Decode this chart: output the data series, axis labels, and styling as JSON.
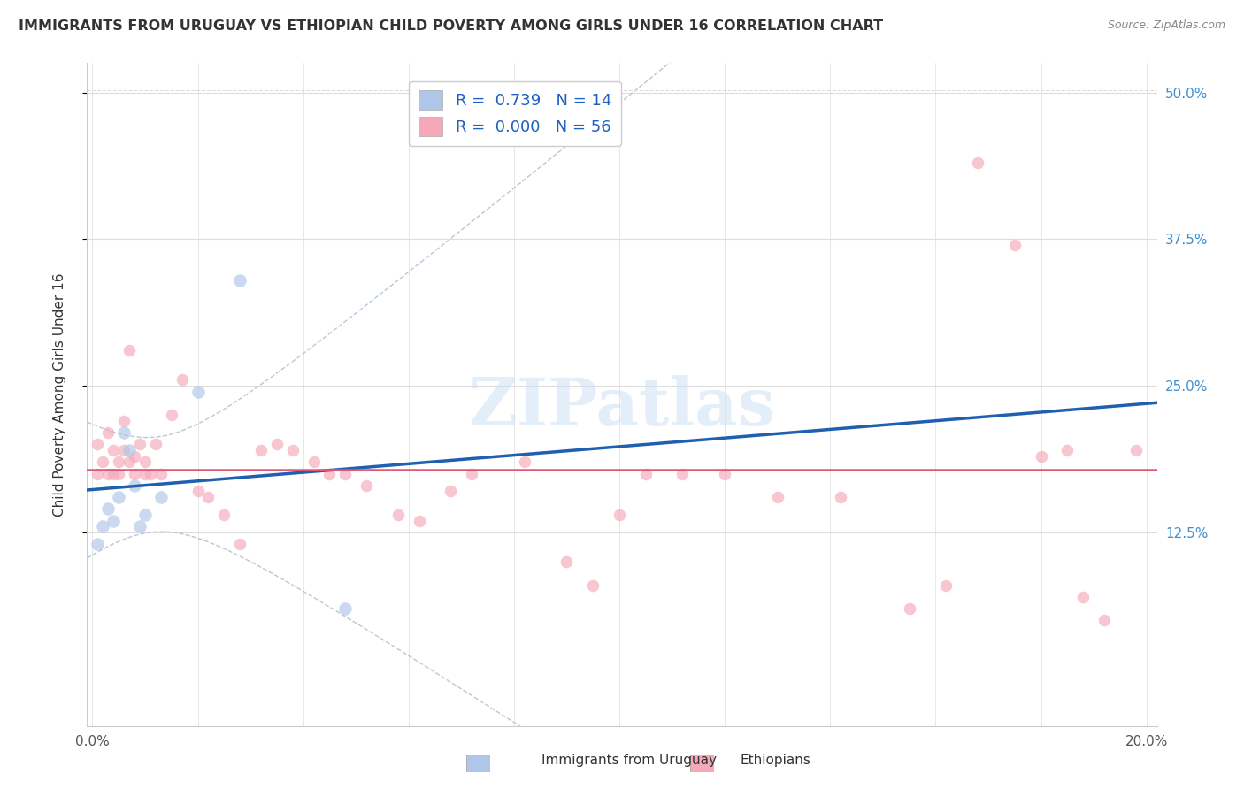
{
  "title": "IMMIGRANTS FROM URUGUAY VS ETHIOPIAN CHILD POVERTY AMONG GIRLS UNDER 16 CORRELATION CHART",
  "source": "Source: ZipAtlas.com",
  "ylabel": "Child Poverty Among Girls Under 16",
  "watermark": "ZIPatlas",
  "legend_r_uruguay": "0.739",
  "legend_n_uruguay": "14",
  "legend_r_ethiopian": "0.000",
  "legend_n_ethiopian": "56",
  "legend_label_uruguay": "Immigrants from Uruguay",
  "legend_label_ethiopian": "Ethiopians",
  "xlim": [
    -0.001,
    0.202
  ],
  "ylim": [
    -0.04,
    0.525
  ],
  "ytick_right": [
    0.125,
    0.25,
    0.375,
    0.5
  ],
  "ytick_right_labels": [
    "12.5%",
    "25.0%",
    "37.5%",
    "50.0%"
  ],
  "color_uruguay": "#aec6e8",
  "color_ethiopian": "#f4a8b8",
  "background_color": "#ffffff",
  "grid_color": "#dddddd",
  "title_color": "#333333",
  "regression_line_color_uruguay": "#2060b0",
  "regression_line_color_ethiopian": "#e05878",
  "ci_line_color": "#b8c8d8",
  "uruguay_x": [
    0.001,
    0.002,
    0.003,
    0.004,
    0.005,
    0.006,
    0.007,
    0.008,
    0.009,
    0.01,
    0.013,
    0.02,
    0.028,
    0.048
  ],
  "uruguay_y": [
    0.115,
    0.13,
    0.145,
    0.135,
    0.155,
    0.21,
    0.195,
    0.165,
    0.13,
    0.14,
    0.155,
    0.245,
    0.34,
    0.06
  ],
  "ethiopian_x": [
    0.001,
    0.001,
    0.002,
    0.003,
    0.003,
    0.004,
    0.004,
    0.005,
    0.005,
    0.006,
    0.006,
    0.007,
    0.007,
    0.008,
    0.008,
    0.009,
    0.01,
    0.01,
    0.011,
    0.012,
    0.013,
    0.015,
    0.017,
    0.02,
    0.022,
    0.025,
    0.028,
    0.032,
    0.035,
    0.038,
    0.042,
    0.045,
    0.048,
    0.052,
    0.058,
    0.062,
    0.068,
    0.072,
    0.082,
    0.09,
    0.095,
    0.1,
    0.105,
    0.112,
    0.12,
    0.13,
    0.142,
    0.155,
    0.162,
    0.168,
    0.175,
    0.18,
    0.185,
    0.188,
    0.192,
    0.198
  ],
  "ethiopian_y": [
    0.175,
    0.2,
    0.185,
    0.175,
    0.21,
    0.175,
    0.195,
    0.185,
    0.175,
    0.22,
    0.195,
    0.185,
    0.28,
    0.19,
    0.175,
    0.2,
    0.185,
    0.175,
    0.175,
    0.2,
    0.175,
    0.225,
    0.255,
    0.16,
    0.155,
    0.14,
    0.115,
    0.195,
    0.2,
    0.195,
    0.185,
    0.175,
    0.175,
    0.165,
    0.14,
    0.135,
    0.16,
    0.175,
    0.185,
    0.1,
    0.08,
    0.14,
    0.175,
    0.175,
    0.175,
    0.155,
    0.155,
    0.06,
    0.08,
    0.44,
    0.37,
    0.19,
    0.195,
    0.07,
    0.05,
    0.195
  ],
  "scatter_size_uruguay": 110,
  "scatter_size_ethiopian": 95,
  "scatter_alpha": 0.65
}
